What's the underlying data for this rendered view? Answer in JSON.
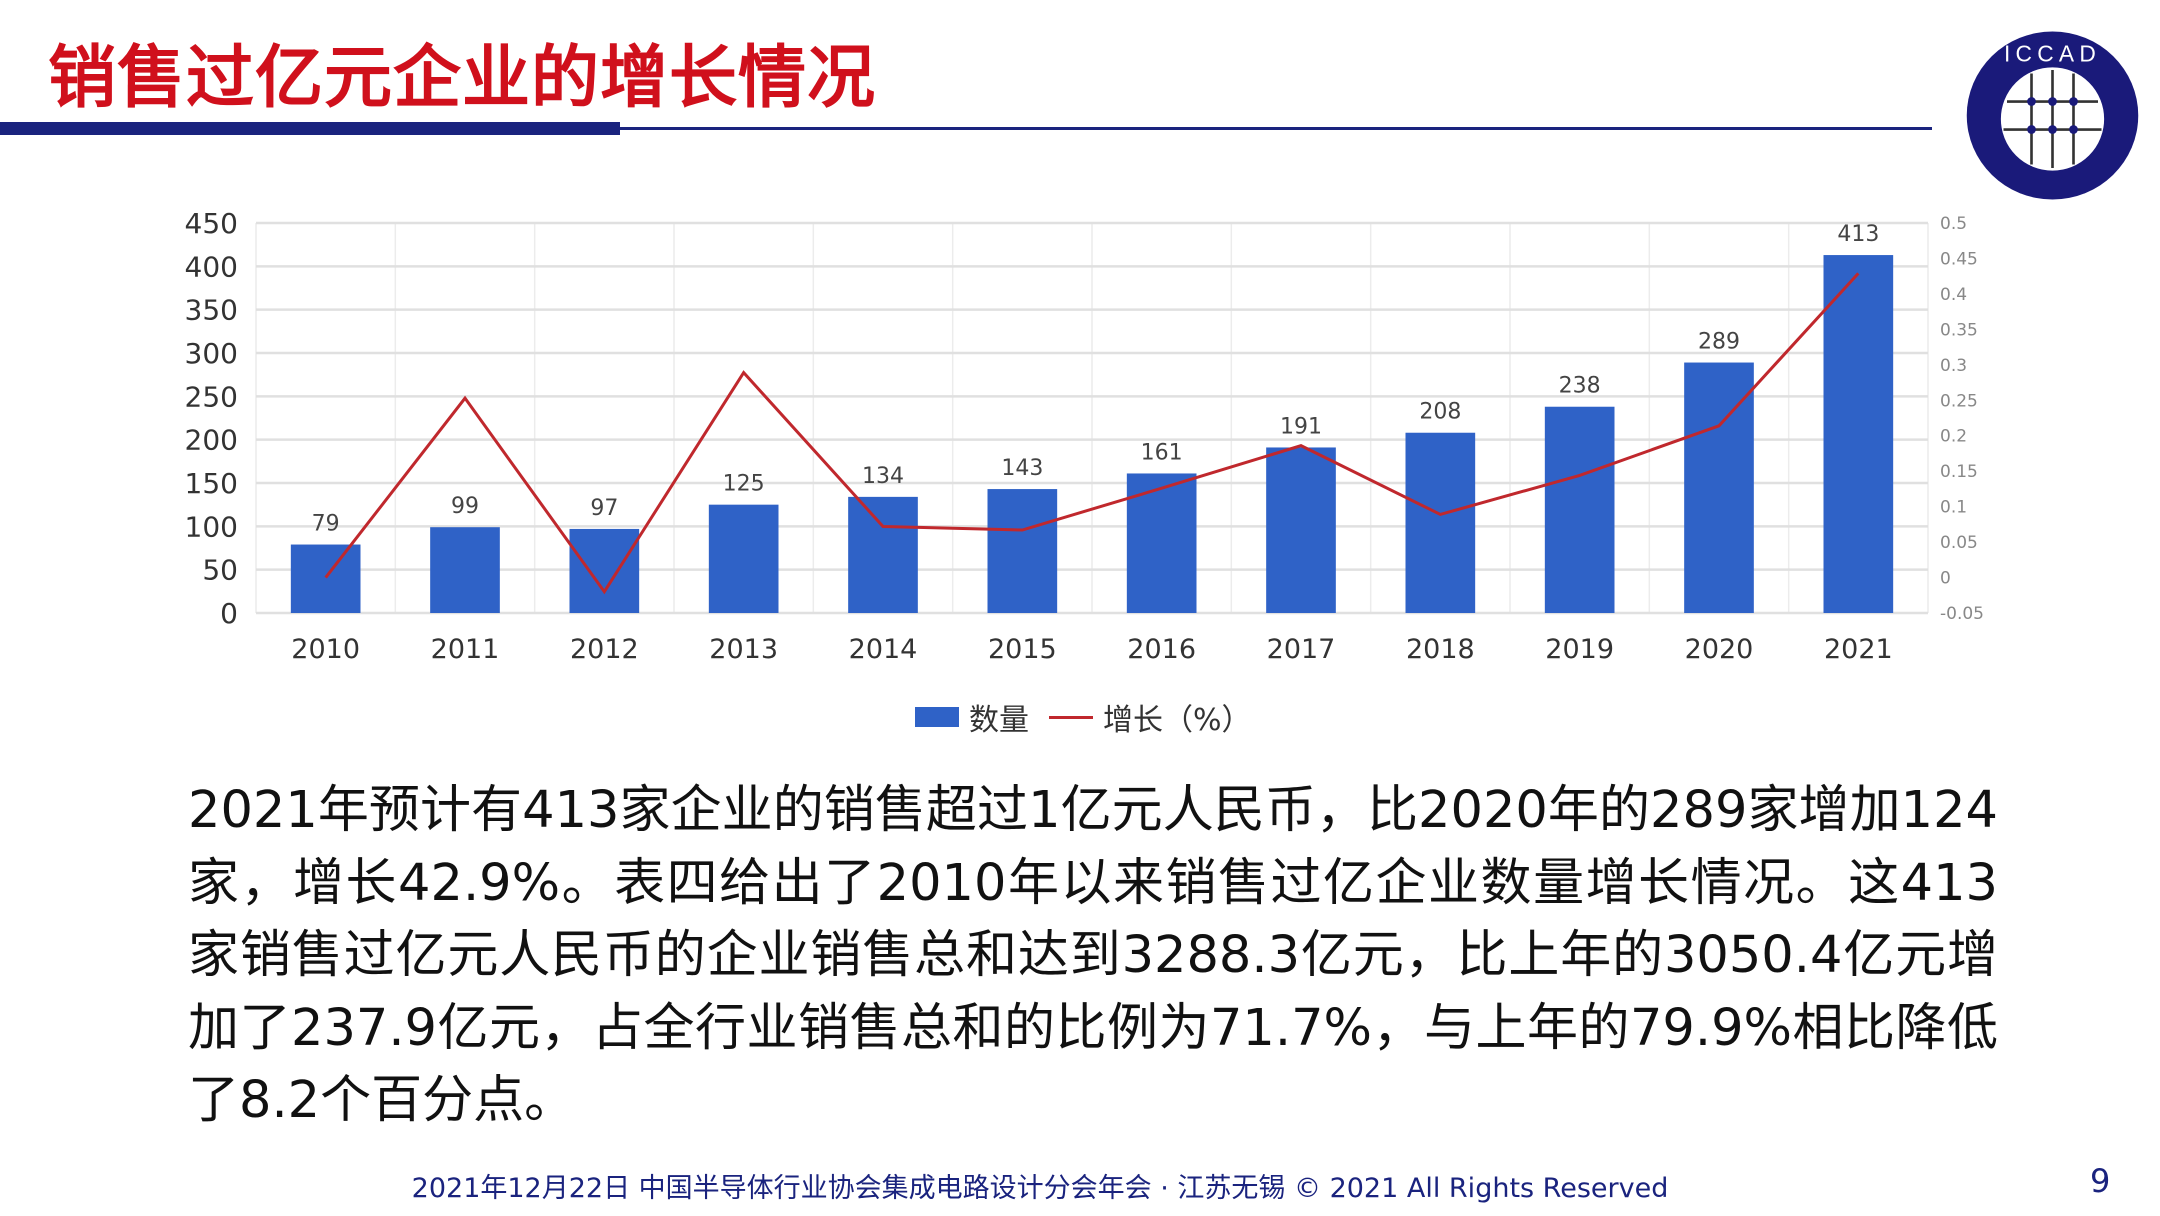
{
  "title": "销售过亿元企业的增长情况",
  "logo": {
    "text": "ICCAD",
    "subtext": "中国半导体行业协会集成电路设计分会"
  },
  "chart_data": {
    "type": "bar+line",
    "categories": [
      "2010",
      "2011",
      "2012",
      "2013",
      "2014",
      "2015",
      "2016",
      "2017",
      "2018",
      "2019",
      "2020",
      "2021"
    ],
    "series": [
      {
        "name": "数量",
        "type": "bar",
        "axis": "left",
        "color": "#2f62c7",
        "values": [
          79,
          99,
          97,
          125,
          134,
          143,
          161,
          191,
          208,
          238,
          289,
          413
        ]
      },
      {
        "name": "增长（%）",
        "type": "line",
        "axis": "right",
        "color": "#c0282d",
        "values": [
          0.0,
          0.253,
          -0.02,
          0.289,
          0.072,
          0.067,
          0.126,
          0.186,
          0.089,
          0.144,
          0.214,
          0.429
        ]
      }
    ],
    "left_axis": {
      "ylim": [
        0,
        450
      ],
      "ticks": [
        "0",
        "50",
        "100",
        "150",
        "200",
        "250",
        "300",
        "350",
        "400",
        "450"
      ]
    },
    "right_axis": {
      "ylim": [
        -0.05,
        0.5
      ],
      "ticks": [
        "-0.05",
        "0",
        "0.05",
        "0.1",
        "0.15",
        "0.2",
        "0.25",
        "0.3",
        "0.35",
        "0.4",
        "0.45",
        "0.5"
      ]
    },
    "data_labels": [
      "79",
      "99",
      "97",
      "125",
      "134",
      "143",
      "161",
      "191",
      "208",
      "238",
      "289",
      "413"
    ],
    "grid": true,
    "legend_position": "bottom"
  },
  "legend": {
    "bar": "数量",
    "line": "增长（%）"
  },
  "paragraph": "2021年预计有413家企业的销售超过1亿元人民币，比2020年的289家增加124家，增长42.9%。表四给出了2010年以来销售过亿企业数量增长情况。这413家销售过亿元人民币的企业销售总和达到3288.3亿元，比上年的3050.4亿元增加了237.9亿元，占全行业销售总和的比例为71.7%，与上年的79.9%相比降低了8.2个百分点。",
  "footer": "2021年12月22日 中国半导体行业协会集成电路设计分会年会 · 江苏无锡 © 2021 All Rights Reserved",
  "page_number": "9"
}
